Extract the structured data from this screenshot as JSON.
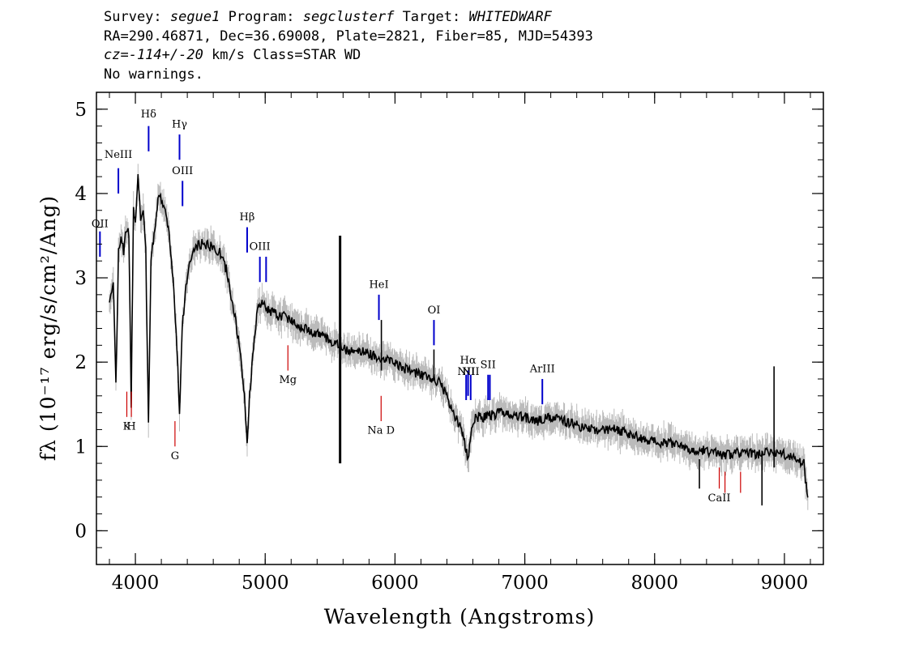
{
  "header": {
    "line1": {
      "survey_label": "Survey:",
      "survey": "segue1",
      "program_label": "Program:",
      "program": "segclusterf",
      "target_label": "Target:",
      "target": "WHITEDWARF"
    },
    "line2": "RA=290.46871, Dec=36.69008, Plate=2821, Fiber=85, MJD=54393",
    "line3": {
      "cz": "cz=-114+/-20",
      "rest": " km/s Class=STAR WD"
    },
    "line4": "No warnings."
  },
  "chart_data": {
    "type": "line",
    "xlabel": "Wavelength (Angstroms)",
    "ylabel": "fλ (10⁻¹⁷ erg/s/cm²/Ang)",
    "xlim": [
      3700,
      9300
    ],
    "ylim": [
      -0.4,
      5.2
    ],
    "x_ticks": [
      4000,
      5000,
      6000,
      7000,
      8000,
      9000
    ],
    "y_ticks": [
      0,
      1,
      2,
      3,
      4,
      5
    ],
    "grid": false,
    "colors": {
      "spectrum": "#000000",
      "error": "#bbbbbb",
      "emission": "#0000cc",
      "absorption": "#cc0000"
    },
    "series": [
      {
        "name": "flux",
        "points": [
          [
            3800,
            2.7
          ],
          [
            3830,
            3.0
          ],
          [
            3850,
            1.7
          ],
          [
            3870,
            3.3
          ],
          [
            3890,
            3.5
          ],
          [
            3910,
            3.3
          ],
          [
            3930,
            3.6
          ],
          [
            3950,
            3.5
          ],
          [
            3968,
            1.5
          ],
          [
            3985,
            3.8
          ],
          [
            4000,
            3.7
          ],
          [
            4020,
            4.2
          ],
          [
            4040,
            3.7
          ],
          [
            4060,
            3.8
          ],
          [
            4080,
            3.3
          ],
          [
            4101,
            1.3
          ],
          [
            4120,
            3.2
          ],
          [
            4150,
            3.6
          ],
          [
            4180,
            4.0
          ],
          [
            4200,
            3.9
          ],
          [
            4230,
            3.8
          ],
          [
            4260,
            3.5
          ],
          [
            4290,
            3.0
          ],
          [
            4320,
            2.2
          ],
          [
            4340,
            1.4
          ],
          [
            4360,
            2.4
          ],
          [
            4390,
            2.9
          ],
          [
            4420,
            3.2
          ],
          [
            4460,
            3.35
          ],
          [
            4500,
            3.4
          ],
          [
            4550,
            3.4
          ],
          [
            4600,
            3.35
          ],
          [
            4650,
            3.3
          ],
          [
            4700,
            3.1
          ],
          [
            4750,
            2.7
          ],
          [
            4800,
            2.2
          ],
          [
            4840,
            1.6
          ],
          [
            4861,
            1.05
          ],
          [
            4880,
            1.6
          ],
          [
            4910,
            2.2
          ],
          [
            4940,
            2.6
          ],
          [
            4970,
            2.7
          ],
          [
            5000,
            2.65
          ],
          [
            5050,
            2.6
          ],
          [
            5100,
            2.55
          ],
          [
            5150,
            2.55
          ],
          [
            5200,
            2.5
          ],
          [
            5300,
            2.4
          ],
          [
            5400,
            2.35
          ],
          [
            5500,
            2.25
          ],
          [
            5580,
            2.2
          ],
          [
            5600,
            2.15
          ],
          [
            5700,
            2.15
          ],
          [
            5800,
            2.1
          ],
          [
            5900,
            2.05
          ],
          [
            6000,
            2.0
          ],
          [
            6100,
            1.9
          ],
          [
            6200,
            1.85
          ],
          [
            6300,
            1.8
          ],
          [
            6350,
            1.75
          ],
          [
            6400,
            1.6
          ],
          [
            6450,
            1.4
          ],
          [
            6500,
            1.25
          ],
          [
            6530,
            1.1
          ],
          [
            6563,
            0.85
          ],
          [
            6590,
            1.2
          ],
          [
            6620,
            1.35
          ],
          [
            6700,
            1.35
          ],
          [
            6800,
            1.4
          ],
          [
            6900,
            1.35
          ],
          [
            7000,
            1.35
          ],
          [
            7100,
            1.3
          ],
          [
            7200,
            1.35
          ],
          [
            7300,
            1.3
          ],
          [
            7400,
            1.25
          ],
          [
            7500,
            1.2
          ],
          [
            7600,
            1.2
          ],
          [
            7700,
            1.2
          ],
          [
            7800,
            1.15
          ],
          [
            7900,
            1.1
          ],
          [
            8000,
            1.05
          ],
          [
            8100,
            1.05
          ],
          [
            8200,
            1.0
          ],
          [
            8300,
            0.95
          ],
          [
            8400,
            0.95
          ],
          [
            8500,
            0.9
          ],
          [
            8600,
            0.9
          ],
          [
            8700,
            0.95
          ],
          [
            8800,
            0.9
          ],
          [
            8900,
            0.95
          ],
          [
            9000,
            0.9
          ],
          [
            9100,
            0.85
          ],
          [
            9150,
            0.8
          ],
          [
            9180,
            0.35
          ]
        ],
        "spikes": [
          [
            5577,
            3.5,
            0.8
          ],
          [
            8345,
            0.85,
            0.5
          ],
          [
            8827,
            0.95,
            0.3
          ],
          [
            8920,
            1.95,
            0.75
          ],
          [
            6300,
            2.15,
            1.8
          ],
          [
            5895,
            2.5,
            1.9
          ]
        ]
      }
    ],
    "line_markers": [
      {
        "label": "NeIII",
        "x": 3869,
        "y_from": 4.0,
        "y_to": 4.3,
        "color": "#0000cc",
        "label_y": 4.42,
        "kind": "emission"
      },
      {
        "label": "Hδ",
        "x": 4102,
        "y_from": 4.5,
        "y_to": 4.8,
        "color": "#0000cc",
        "label_y": 4.9,
        "kind": "emission"
      },
      {
        "label": "Hγ",
        "x": 4340,
        "y_from": 4.4,
        "y_to": 4.7,
        "color": "#0000cc",
        "label_y": 4.78,
        "kind": "emission"
      },
      {
        "label": "OIII",
        "x": 4363,
        "y_from": 3.85,
        "y_to": 4.15,
        "color": "#0000cc",
        "label_y": 4.23,
        "kind": "emission"
      },
      {
        "label": "OII",
        "x": 3727,
        "y_from": 3.25,
        "y_to": 3.55,
        "color": "#0000cc",
        "label_y": 3.6,
        "kind": "emission"
      },
      {
        "label": "Hβ",
        "x": 4861,
        "y_from": 3.3,
        "y_to": 3.6,
        "color": "#0000cc",
        "label_y": 3.68,
        "kind": "emission"
      },
      {
        "label": "OIII",
        "x": 4959,
        "y_from": 2.95,
        "y_to": 3.25,
        "color": "#0000cc",
        "label_y": 3.33,
        "kind": "emission"
      },
      {
        "label": "",
        "x": 5007,
        "y_from": 2.95,
        "y_to": 3.25,
        "color": "#0000cc",
        "label_y": 3.33,
        "kind": "emission"
      },
      {
        "label": "HeI",
        "x": 5876,
        "y_from": 2.5,
        "y_to": 2.8,
        "color": "#0000cc",
        "label_y": 2.88,
        "kind": "emission"
      },
      {
        "label": "OI",
        "x": 6300,
        "y_from": 2.2,
        "y_to": 2.5,
        "color": "#0000cc",
        "label_y": 2.58,
        "kind": "emission"
      },
      {
        "label": "NII",
        "x": 6548,
        "y_from": 1.55,
        "y_to": 1.85,
        "color": "#0000cc",
        "label_y": 1.85,
        "kind": "emission"
      },
      {
        "label": "Hα",
        "x": 6563,
        "y_from": 1.6,
        "y_to": 1.9,
        "color": "#0000cc",
        "label_y": 1.98,
        "kind": "emission"
      },
      {
        "label": "NII",
        "x": 6583,
        "y_from": 1.55,
        "y_to": 1.85,
        "color": "#0000cc",
        "label_y": 1.85,
        "kind": "emission"
      },
      {
        "label": "SII",
        "x": 6717,
        "y_from": 1.55,
        "y_to": 1.85,
        "color": "#0000cc",
        "label_y": 1.93,
        "kind": "emission"
      },
      {
        "label": "",
        "x": 6731,
        "y_from": 1.55,
        "y_to": 1.85,
        "color": "#0000cc",
        "label_y": 1.93,
        "kind": "emission"
      },
      {
        "label": "ArIII",
        "x": 7135,
        "y_from": 1.5,
        "y_to": 1.8,
        "color": "#0000cc",
        "label_y": 1.88,
        "kind": "emission"
      },
      {
        "label": "Mg",
        "x": 5175,
        "y_from": 1.9,
        "y_to": 2.2,
        "color": "#cc0000",
        "label_y": 1.75,
        "kind": "absorption"
      },
      {
        "label": "G",
        "x": 4305,
        "y_from": 1.0,
        "y_to": 1.3,
        "color": "#cc0000",
        "label_y": 0.85,
        "kind": "absorption"
      },
      {
        "label": "K",
        "x": 3934,
        "y_from": 1.35,
        "y_to": 1.65,
        "color": "#cc0000",
        "label_y": 1.2,
        "kind": "absorption"
      },
      {
        "label": "H",
        "x": 3969,
        "y_from": 1.35,
        "y_to": 1.65,
        "color": "#cc0000",
        "label_y": 1.2,
        "kind": "absorption"
      },
      {
        "label": "Na D",
        "x": 5893,
        "y_from": 1.3,
        "y_to": 1.6,
        "color": "#cc0000",
        "label_y": 1.15,
        "kind": "absorption"
      },
      {
        "label": "CaII",
        "x": 8498,
        "y_from": 0.5,
        "y_to": 0.75,
        "color": "#cc0000",
        "label_y": 0.35,
        "kind": "absorption"
      },
      {
        "label": "",
        "x": 8542,
        "y_from": 0.45,
        "y_to": 0.7,
        "color": "#cc0000",
        "label_y": 0.35,
        "kind": "absorption"
      },
      {
        "label": "",
        "x": 8662,
        "y_from": 0.45,
        "y_to": 0.7,
        "color": "#cc0000",
        "label_y": 0.35,
        "kind": "absorption"
      }
    ]
  }
}
